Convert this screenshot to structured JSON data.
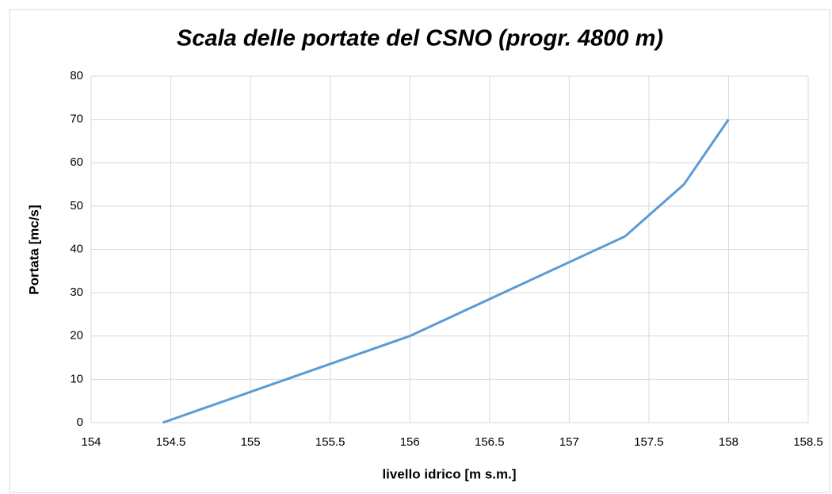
{
  "chart_data": {
    "type": "line",
    "title": "Scala delle portate del CSNO (progr. 4800 m)",
    "xlabel": "livello idrico [m s.m.]",
    "ylabel": "Portata [mc/s]",
    "x": [
      154.45,
      156,
      157.35,
      157.72,
      158
    ],
    "series": [
      {
        "name": "Portata",
        "color": "#5b9bd5",
        "values": [
          0,
          20,
          43,
          55,
          70
        ]
      }
    ],
    "xlim": [
      154,
      158.5
    ],
    "xticks": [
      154,
      154.5,
      155,
      155.5,
      156,
      156.5,
      157,
      157.5,
      158,
      158.5
    ],
    "ylim": [
      0,
      80
    ],
    "yticks": [
      0,
      10,
      20,
      30,
      40,
      50,
      60,
      70,
      80
    ],
    "grid": true
  }
}
